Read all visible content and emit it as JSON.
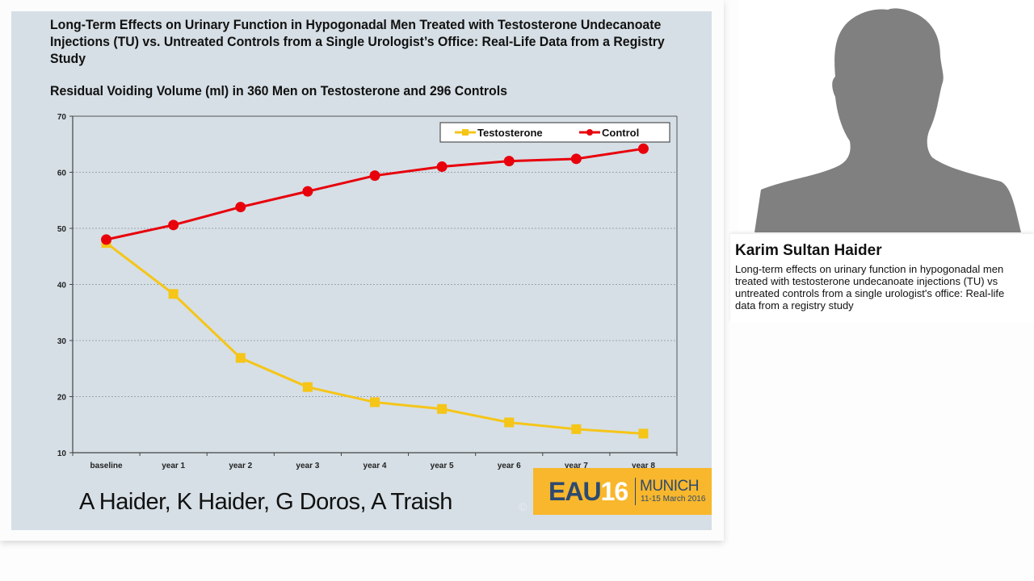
{
  "slide": {
    "title": "Long-Term Effects on Urinary Function in Hypogonadal Men Treated with Testosterone Undecanoate Injections (TU) vs. Untreated Controls from a Single Urologist’s Office: Real-Life Data from a Registry Study",
    "subtitle": "Residual Voiding Volume (ml) in 360 Men on Testosterone and 296 Controls",
    "authors": "A Haider, K Haider, G Doros, A Traish",
    "copyright": "©",
    "logo": {
      "eau": "EAU",
      "num": "16",
      "city": "MUNICH",
      "dates": "11-15 March 2016",
      "bg_color": "#f8b72c"
    }
  },
  "speaker": {
    "name": "Karim Sultan Haider",
    "talk_title": "Long-term effects on urinary function in hypogonadal men treated with testosterone undecanoate injections (TU) vs untreated controls from a single urologist's office: Real-life data from a registry study",
    "avatar_icon": "person-silhouette-icon"
  },
  "chart_data": {
    "type": "line",
    "title": "Residual Voiding Volume (ml) in 360 Men on Testosterone and 296 Controls",
    "xlabel": "",
    "ylabel": "",
    "categories": [
      "baseline",
      "year 1",
      "year 2",
      "year 3",
      "year 4",
      "year 5",
      "year 6",
      "year 7",
      "year 8"
    ],
    "series": [
      {
        "name": "Testosterone",
        "color": "#f5c518",
        "marker": "square",
        "values": [
          47.4,
          38.3,
          26.9,
          21.7,
          19.0,
          17.8,
          15.4,
          14.2,
          13.4
        ]
      },
      {
        "name": "Control",
        "color": "#e8000b",
        "marker": "circle",
        "values": [
          48.0,
          50.6,
          53.8,
          56.6,
          59.4,
          61.0,
          62.0,
          62.4,
          64.2
        ]
      }
    ],
    "ylim": [
      10,
      70
    ],
    "yticks": [
      10,
      20,
      30,
      40,
      50,
      60,
      70
    ],
    "grid": "horizontal dotted",
    "legend_position": "top-right"
  }
}
